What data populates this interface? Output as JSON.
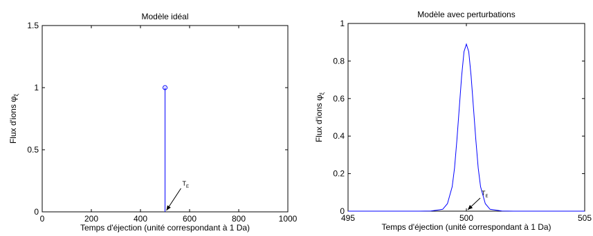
{
  "chart_data": [
    {
      "type": "stem",
      "title": "Modèle idéal",
      "xlabel": "Temps d'éjection (unité correspondant à 1 Da)",
      "ylabel": "Flux d'ions",
      "ylabel_symbol": "φ",
      "ylabel_subscript": "ξ",
      "xlim": [
        0,
        1000
      ],
      "ylim": [
        0,
        1.5
      ],
      "xticks": [
        "0",
        "200",
        "400",
        "600",
        "800",
        "1000"
      ],
      "yticks": [
        "0",
        "0.5",
        "1",
        "1.5"
      ],
      "series": [
        {
          "color": "#0000ff",
          "points": [
            {
              "x": 500,
              "y": 1
            }
          ]
        }
      ],
      "annotation": {
        "text": "T",
        "subscript": "E",
        "x": 500,
        "y": 0
      },
      "grid": false
    },
    {
      "type": "line",
      "title": "Modèle avec perturbations",
      "xlabel": "Temps d'éjection (unité correspondant à 1 Da)",
      "ylabel": "Flux d'ions",
      "ylabel_symbol": "φ",
      "ylabel_subscript": "ξ",
      "xlim": [
        495,
        505
      ],
      "ylim": [
        0,
        1
      ],
      "xticks": [
        "495",
        "500",
        "505"
      ],
      "yticks": [
        "0",
        "0.2",
        "0.4",
        "0.6",
        "0.8",
        "1"
      ],
      "series": [
        {
          "color": "#0000ff",
          "x": [
            495,
            496,
            497,
            498,
            498.5,
            499,
            499.2,
            499.4,
            499.5,
            499.6,
            499.7,
            499.8,
            499.9,
            500,
            500.1,
            500.2,
            500.3,
            500.4,
            500.5,
            500.6,
            500.8,
            501,
            501.5,
            502,
            503,
            504,
            505
          ],
          "y": [
            0,
            0,
            0,
            0,
            0.001,
            0.01,
            0.04,
            0.13,
            0.23,
            0.38,
            0.55,
            0.72,
            0.85,
            0.89,
            0.85,
            0.72,
            0.55,
            0.38,
            0.23,
            0.13,
            0.04,
            0.01,
            0.001,
            0,
            0,
            0,
            0
          ]
        }
      ],
      "annotation": {
        "text": "T",
        "subscript": "E",
        "x": 500,
        "y": 0
      },
      "grid": false
    }
  ]
}
